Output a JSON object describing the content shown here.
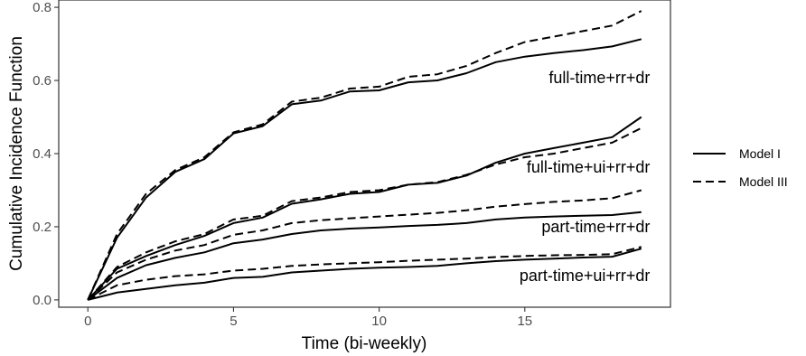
{
  "chart_data": {
    "type": "line",
    "title": "",
    "xlabel": "Time (bi-weekly)",
    "ylabel": "Cumulative Incidence Function",
    "xlim": [
      -1,
      20
    ],
    "ylim": [
      -0.02,
      0.82
    ],
    "x_ticks": [
      0,
      5,
      10,
      15
    ],
    "x_tick_labels": [
      "0",
      "5",
      "10",
      "15"
    ],
    "y_ticks": [
      0.0,
      0.2,
      0.4,
      0.6,
      0.8
    ],
    "y_tick_labels": [
      "0.0",
      "0.2",
      "0.4",
      "0.6",
      "0.8"
    ],
    "grid": false,
    "legend_placement": "right",
    "legend": [
      {
        "label": "Model I",
        "dash": "solid"
      },
      {
        "label": "Model III",
        "dash": "dashed"
      }
    ],
    "annotations": [
      {
        "text": "full-time+rr+dr",
        "x": 19.3,
        "y": 0.607
      },
      {
        "text": "full-time+ui+rr+dr",
        "x": 19.3,
        "y": 0.363
      },
      {
        "text": "part-time+rr+dr",
        "x": 19.3,
        "y": 0.2
      },
      {
        "text": "part-time+ui+rr+dr",
        "x": 19.3,
        "y": 0.067
      }
    ],
    "series": [
      {
        "group": "full-time+rr+dr",
        "model": "Model I",
        "dash": "solid",
        "x": [
          0,
          1,
          2,
          3,
          4,
          5,
          6,
          7,
          8,
          9,
          10,
          11,
          12,
          13,
          14,
          15,
          16,
          17,
          18,
          19
        ],
        "y": [
          0.0,
          0.17,
          0.28,
          0.35,
          0.385,
          0.455,
          0.475,
          0.535,
          0.545,
          0.57,
          0.573,
          0.595,
          0.6,
          0.62,
          0.65,
          0.665,
          0.675,
          0.683,
          0.693,
          0.713
        ]
      },
      {
        "group": "full-time+rr+dr",
        "model": "Model III",
        "dash": "dashed",
        "x": [
          0,
          1,
          2,
          3,
          4,
          5,
          6,
          7,
          8,
          9,
          10,
          11,
          12,
          13,
          14,
          15,
          16,
          17,
          18,
          19
        ],
        "y": [
          0.0,
          0.18,
          0.29,
          0.355,
          0.39,
          0.458,
          0.48,
          0.542,
          0.553,
          0.578,
          0.583,
          0.61,
          0.617,
          0.64,
          0.675,
          0.705,
          0.72,
          0.735,
          0.75,
          0.79
        ]
      },
      {
        "group": "full-time+ui+rr+dr",
        "model": "Model I",
        "dash": "solid",
        "x": [
          0,
          1,
          2,
          3,
          4,
          5,
          6,
          7,
          8,
          9,
          10,
          11,
          12,
          13,
          14,
          15,
          16,
          17,
          18,
          19
        ],
        "y": [
          0.0,
          0.085,
          0.12,
          0.15,
          0.175,
          0.21,
          0.225,
          0.263,
          0.275,
          0.29,
          0.295,
          0.315,
          0.32,
          0.34,
          0.375,
          0.4,
          0.415,
          0.43,
          0.445,
          0.5
        ]
      },
      {
        "group": "full-time+ui+rr+dr",
        "model": "Model III",
        "dash": "dashed",
        "x": [
          0,
          1,
          2,
          3,
          4,
          5,
          6,
          7,
          8,
          9,
          10,
          11,
          12,
          13,
          14,
          15,
          16,
          17,
          18,
          19
        ],
        "y": [
          0.0,
          0.09,
          0.13,
          0.16,
          0.18,
          0.22,
          0.23,
          0.27,
          0.28,
          0.295,
          0.3,
          0.315,
          0.322,
          0.342,
          0.37,
          0.39,
          0.4,
          0.415,
          0.43,
          0.47
        ]
      },
      {
        "group": "part-time+rr+dr",
        "model": "Model I",
        "dash": "solid",
        "x": [
          0,
          1,
          2,
          3,
          4,
          5,
          6,
          7,
          8,
          9,
          10,
          11,
          12,
          13,
          14,
          15,
          16,
          17,
          18,
          19
        ],
        "y": [
          0.0,
          0.06,
          0.095,
          0.115,
          0.13,
          0.155,
          0.165,
          0.18,
          0.19,
          0.195,
          0.198,
          0.202,
          0.205,
          0.21,
          0.22,
          0.225,
          0.228,
          0.23,
          0.232,
          0.24
        ]
      },
      {
        "group": "part-time+rr+dr",
        "model": "Model III",
        "dash": "dashed",
        "x": [
          0,
          1,
          2,
          3,
          4,
          5,
          6,
          7,
          8,
          9,
          10,
          11,
          12,
          13,
          14,
          15,
          16,
          17,
          18,
          19
        ],
        "y": [
          0.0,
          0.075,
          0.11,
          0.135,
          0.15,
          0.178,
          0.19,
          0.21,
          0.218,
          0.223,
          0.228,
          0.233,
          0.238,
          0.245,
          0.255,
          0.262,
          0.268,
          0.272,
          0.278,
          0.3
        ]
      },
      {
        "group": "part-time+ui+rr+dr",
        "model": "Model I",
        "dash": "solid",
        "x": [
          0,
          1,
          2,
          3,
          4,
          5,
          6,
          7,
          8,
          9,
          10,
          11,
          12,
          13,
          14,
          15,
          16,
          17,
          18,
          19
        ],
        "y": [
          0.0,
          0.02,
          0.03,
          0.04,
          0.047,
          0.06,
          0.063,
          0.075,
          0.08,
          0.085,
          0.088,
          0.09,
          0.093,
          0.1,
          0.106,
          0.11,
          0.113,
          0.116,
          0.118,
          0.14
        ]
      },
      {
        "group": "part-time+ui+rr+dr",
        "model": "Model III",
        "dash": "dashed",
        "x": [
          0,
          1,
          2,
          3,
          4,
          5,
          6,
          7,
          8,
          9,
          10,
          11,
          12,
          13,
          14,
          15,
          16,
          17,
          18,
          19
        ],
        "y": [
          0.0,
          0.04,
          0.055,
          0.065,
          0.07,
          0.08,
          0.085,
          0.093,
          0.097,
          0.1,
          0.103,
          0.107,
          0.11,
          0.113,
          0.117,
          0.12,
          0.122,
          0.123,
          0.125,
          0.145
        ]
      }
    ]
  }
}
